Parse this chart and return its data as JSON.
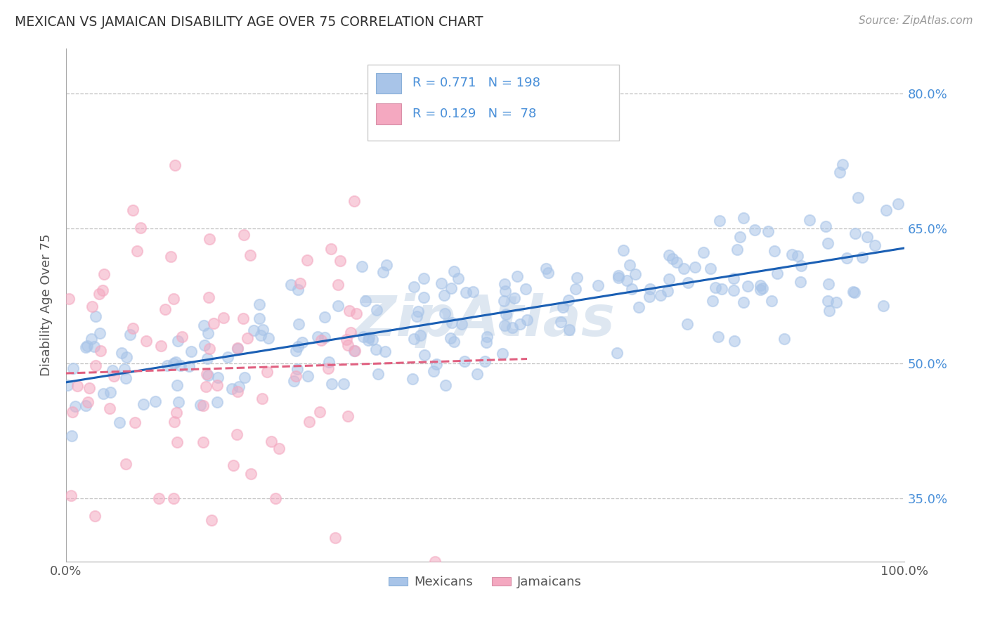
{
  "title": "MEXICAN VS JAMAICAN DISABILITY AGE OVER 75 CORRELATION CHART",
  "source": "Source: ZipAtlas.com",
  "ylabel": "Disability Age Over 75",
  "xlim": [
    0,
    1.0
  ],
  "ylim": [
    0.28,
    0.85
  ],
  "yticks": [
    0.35,
    0.5,
    0.65,
    0.8
  ],
  "ytick_labels": [
    "35.0%",
    "50.0%",
    "65.0%",
    "80.0%"
  ],
  "xticks": [
    0.0,
    1.0
  ],
  "xtick_labels": [
    "0.0%",
    "100.0%"
  ],
  "mexican_R": 0.771,
  "mexican_N": 198,
  "jamaican_R": 0.129,
  "jamaican_N": 78,
  "mexican_color": "#a8c4e8",
  "jamaican_color": "#f4a8c0",
  "mexican_line_color": "#1a5fb4",
  "jamaican_line_color": "#e06080",
  "watermark_color": "#c8d8e8",
  "background_color": "#ffffff",
  "grid_color": "#c0c0c0",
  "title_color": "#333333",
  "tick_color": "#4a90d9",
  "legend_label_mexican": "Mexicans",
  "legend_label_jamaican": "Jamaicans",
  "mexican_line_start_y": 0.479,
  "mexican_line_end_y": 0.628,
  "jamaican_line_start_y": 0.489,
  "jamaican_line_end_y": 0.505
}
